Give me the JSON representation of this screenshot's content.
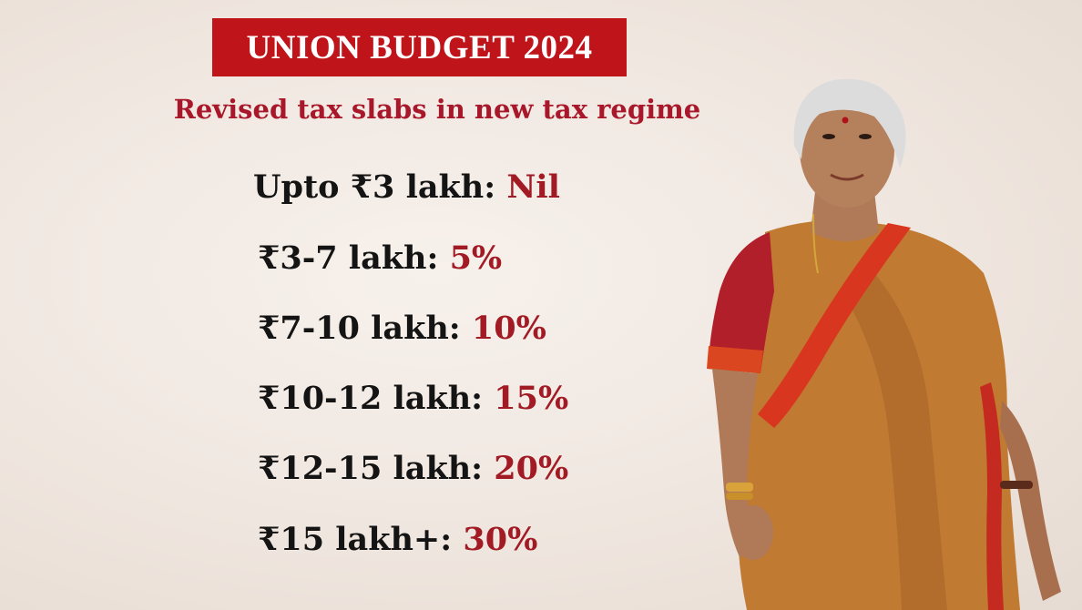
{
  "header": {
    "title": "UNION BUDGET 2024",
    "subtitle": "Revised tax slabs in new tax regime"
  },
  "slabs": [
    {
      "label": "Upto ₹3 lakh:",
      "rate": "Nil"
    },
    {
      "label": "₹3-7 lakh:",
      "rate": "5%"
    },
    {
      "label": "₹7-10 lakh:",
      "rate": "10%"
    },
    {
      "label": "₹10-12 lakh:",
      "rate": "15%"
    },
    {
      "label": "₹12-15 lakh:",
      "rate": "20%"
    },
    {
      "label": "₹15 lakh+:",
      "rate": "30%"
    }
  ],
  "colors": {
    "banner": "#c0141b",
    "subtitle": "#a9182a",
    "rate": "#a11a24",
    "label": "#141414",
    "saree": "#c07a32",
    "blouse": "#b11f2a",
    "border": "#d9361f",
    "skin": "#b07a58",
    "hair": "#dcdcdc"
  },
  "icons": {
    "person": "woman-in-saree-photo"
  }
}
